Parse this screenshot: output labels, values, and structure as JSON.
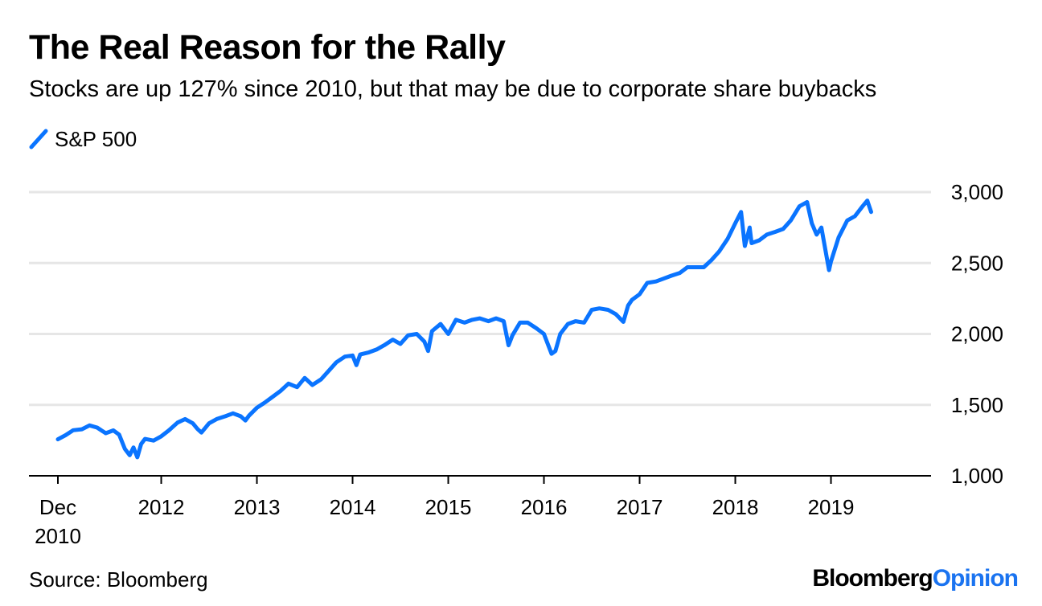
{
  "header": {
    "title": "The Real Reason for the Rally",
    "subtitle": "Stocks are up 127% since 2010, but that may be due to corporate share buybacks"
  },
  "footer": {
    "source": "Source: Bloomberg",
    "brand_primary": "Bloomberg",
    "brand_secondary": "Opinion"
  },
  "colors": {
    "series": "#0a74ff",
    "grid": "#e6e6e6",
    "axis": "#000000",
    "brand_accent": "#1a73f0"
  },
  "chart_data": {
    "type": "line",
    "title": "The Real Reason for the Rally",
    "subtitle": "Stocks are up 127% since 2010, but that may be due to corporate share buybacks",
    "xlabel": "",
    "ylabel": "",
    "ylim": [
      1000,
      3000
    ],
    "xlim": [
      2010.92,
      2019.92
    ],
    "grid": true,
    "legend_position": "top-left",
    "y_ticks": [
      {
        "value": 1000,
        "label": "1,000"
      },
      {
        "value": 1500,
        "label": "1,500"
      },
      {
        "value": 2000,
        "label": "2,000"
      },
      {
        "value": 2500,
        "label": "2,500"
      },
      {
        "value": 3000,
        "label": "3,000"
      }
    ],
    "x_ticks": [
      {
        "value": 2010.92,
        "label": "Dec",
        "label2": "2010"
      },
      {
        "value": 2012.0,
        "label": "2012"
      },
      {
        "value": 2013.0,
        "label": "2013"
      },
      {
        "value": 2014.0,
        "label": "2014"
      },
      {
        "value": 2015.0,
        "label": "2015"
      },
      {
        "value": 2016.0,
        "label": "2016"
      },
      {
        "value": 2017.0,
        "label": "2017"
      },
      {
        "value": 2018.0,
        "label": "2018"
      },
      {
        "value": 2019.0,
        "label": "2019"
      }
    ],
    "series": [
      {
        "name": "S&P 500",
        "x": [
          2010.92,
          2011.0,
          2011.08,
          2011.17,
          2011.25,
          2011.33,
          2011.42,
          2011.5,
          2011.56,
          2011.62,
          2011.67,
          2011.71,
          2011.75,
          2011.79,
          2011.83,
          2011.92,
          2012.0,
          2012.08,
          2012.17,
          2012.25,
          2012.33,
          2012.38,
          2012.42,
          2012.5,
          2012.58,
          2012.67,
          2012.75,
          2012.83,
          2012.88,
          2012.92,
          2013.0,
          2013.08,
          2013.17,
          2013.25,
          2013.33,
          2013.42,
          2013.5,
          2013.58,
          2013.67,
          2013.75,
          2013.83,
          2013.92,
          2014.0,
          2014.04,
          2014.08,
          2014.17,
          2014.25,
          2014.33,
          2014.42,
          2014.5,
          2014.58,
          2014.67,
          2014.75,
          2014.79,
          2014.83,
          2014.92,
          2015.0,
          2015.08,
          2015.17,
          2015.25,
          2015.33,
          2015.42,
          2015.5,
          2015.58,
          2015.63,
          2015.67,
          2015.75,
          2015.83,
          2015.92,
          2016.0,
          2016.08,
          2016.12,
          2016.17,
          2016.25,
          2016.33,
          2016.42,
          2016.5,
          2016.58,
          2016.67,
          2016.75,
          2016.83,
          2016.88,
          2016.92,
          2017.0,
          2017.08,
          2017.17,
          2017.25,
          2017.33,
          2017.42,
          2017.5,
          2017.58,
          2017.67,
          2017.75,
          2017.83,
          2017.92,
          2018.0,
          2018.06,
          2018.1,
          2018.15,
          2018.17,
          2018.25,
          2018.33,
          2018.42,
          2018.5,
          2018.58,
          2018.67,
          2018.75,
          2018.8,
          2018.85,
          2018.9,
          2018.98,
          2019.0,
          2019.08,
          2019.17,
          2019.25,
          2019.33,
          2019.38,
          2019.42
        ],
        "values": [
          1257,
          1286,
          1321,
          1328,
          1355,
          1340,
          1300,
          1320,
          1290,
          1190,
          1145,
          1200,
          1131,
          1224,
          1260,
          1248,
          1278,
          1320,
          1375,
          1400,
          1370,
          1330,
          1305,
          1370,
          1400,
          1420,
          1440,
          1420,
          1390,
          1426,
          1480,
          1515,
          1560,
          1600,
          1650,
          1625,
          1690,
          1640,
          1680,
          1740,
          1800,
          1840,
          1848,
          1780,
          1855,
          1870,
          1890,
          1920,
          1960,
          1930,
          1990,
          2000,
          1946,
          1880,
          2020,
          2070,
          2000,
          2100,
          2080,
          2100,
          2110,
          2090,
          2110,
          2090,
          1920,
          1990,
          2080,
          2080,
          2040,
          2000,
          1860,
          1880,
          2000,
          2070,
          2090,
          2080,
          2170,
          2180,
          2170,
          2140,
          2085,
          2200,
          2240,
          2280,
          2360,
          2370,
          2390,
          2410,
          2430,
          2470,
          2470,
          2470,
          2520,
          2580,
          2670,
          2780,
          2860,
          2620,
          2750,
          2640,
          2660,
          2700,
          2720,
          2740,
          2800,
          2900,
          2930,
          2780,
          2700,
          2750,
          2450,
          2510,
          2680,
          2800,
          2830,
          2900,
          2940,
          2860
        ]
      }
    ]
  }
}
